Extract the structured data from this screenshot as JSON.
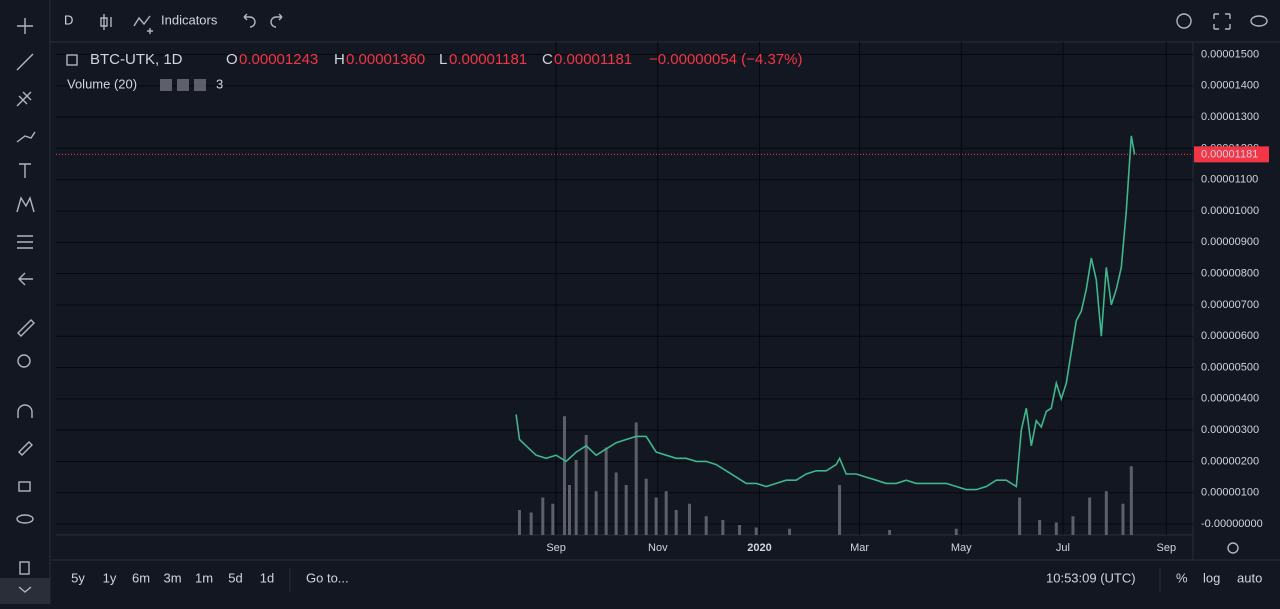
{
  "toolbar": {
    "interval": "D",
    "indicators": "Indicators"
  },
  "legend": {
    "symbol": "BTC-UTK, 1D",
    "o_label": "O",
    "o": "0.00001243",
    "h_label": "H",
    "h": "0.00001360",
    "l_label": "L",
    "l": "0.00001181",
    "c_label": "C",
    "c": "0.00001181",
    "change": "−0.00000054 (−4.37%)",
    "volume": "Volume (20)",
    "volume_count": "3"
  },
  "bottom": {
    "ranges": [
      "5y",
      "1y",
      "6m",
      "3m",
      "1m",
      "5d",
      "1d"
    ],
    "goto": "Go to...",
    "time": "10:53:09 (UTC)",
    "percent": "%",
    "log": "log",
    "auto": "auto"
  },
  "chart_data": {
    "type": "line",
    "color": "#3fb68b",
    "x": [
      -24,
      -22,
      -18,
      -12,
      -6,
      0,
      6,
      12,
      18,
      24,
      30,
      36,
      42,
      48,
      54,
      60,
      66,
      72,
      78,
      84,
      90,
      96,
      102,
      108,
      114,
      120,
      126,
      132,
      138,
      144,
      150,
      156,
      162,
      168,
      170,
      174,
      180,
      186,
      192,
      198,
      204,
      210,
      216,
      222,
      228,
      234,
      240,
      246,
      252,
      258,
      264,
      270,
      276,
      279,
      282,
      285,
      288,
      291,
      294,
      297,
      300,
      303,
      306,
      309,
      312,
      315,
      318,
      321,
      324,
      327,
      330,
      333,
      336,
      339,
      342,
      345,
      347
    ],
    "values": [
      3.5e-06,
      2.7e-06,
      2.5e-06,
      2.2e-06,
      2.1e-06,
      2.2e-06,
      2e-06,
      2.3e-06,
      2.5e-06,
      2.2e-06,
      2.4e-06,
      2.6e-06,
      2.7e-06,
      2.8e-06,
      2.8e-06,
      2.3e-06,
      2.2e-06,
      2.1e-06,
      2.1e-06,
      2e-06,
      2e-06,
      1.9e-06,
      1.7e-06,
      1.5e-06,
      1.3e-06,
      1.3e-06,
      1.2e-06,
      1.3e-06,
      1.4e-06,
      1.4e-06,
      1.6e-06,
      1.7e-06,
      1.7e-06,
      1.9e-06,
      2.1e-06,
      1.6e-06,
      1.6e-06,
      1.5e-06,
      1.4e-06,
      1.3e-06,
      1.3e-06,
      1.4e-06,
      1.3e-06,
      1.3e-06,
      1.3e-06,
      1.3e-06,
      1.2e-06,
      1.1e-06,
      1.1e-06,
      1.2e-06,
      1.4e-06,
      1.4e-06,
      1.2e-06,
      3e-06,
      3.7e-06,
      2.5e-06,
      3.3e-06,
      3.1e-06,
      3.6e-06,
      3.7e-06,
      4.5e-06,
      4e-06,
      4.5e-06,
      5.5e-06,
      6.5e-06,
      6.8e-06,
      7.5e-06,
      8.5e-06,
      7.8e-06,
      6e-06,
      8.2e-06,
      7e-06,
      7.5e-06,
      8.2e-06,
      1e-05,
      1.24e-05,
      1.181e-05
    ],
    "volume": {
      "color": "#5d606b",
      "x": [
        -22,
        -15,
        -8,
        -2,
        5,
        8,
        12,
        18,
        24,
        30,
        36,
        42,
        48,
        54,
        60,
        66,
        72,
        80,
        90,
        100,
        110,
        120,
        140,
        170,
        200,
        240,
        278,
        290,
        300,
        310,
        320,
        330,
        340,
        345
      ],
      "values": [
        20,
        18,
        30,
        25,
        95,
        40,
        60,
        80,
        35,
        70,
        50,
        40,
        90,
        45,
        30,
        35,
        20,
        25,
        15,
        12,
        8,
        6,
        5,
        40,
        4,
        5,
        30,
        12,
        10,
        15,
        30,
        35,
        25,
        55
      ]
    },
    "price_line": {
      "value": 1.181e-05,
      "label": "0.00001181",
      "color": "#f23645"
    },
    "xlim": [
      -300,
      382
    ],
    "xticks": [
      {
        "value": 0,
        "label": "Sep"
      },
      {
        "value": 61,
        "label": "Nov"
      },
      {
        "value": 122,
        "label": "2020"
      },
      {
        "value": 182,
        "label": "Mar"
      },
      {
        "value": 243,
        "label": "May"
      },
      {
        "value": 304,
        "label": "Jul"
      },
      {
        "value": 366,
        "label": "Sep"
      }
    ],
    "ylim": [
      -3.5e-07,
      1.54e-05
    ],
    "yticks": [
      {
        "value": 1.5e-05,
        "label": "0.00001500"
      },
      {
        "value": 1.4e-05,
        "label": "0.00001400"
      },
      {
        "value": 1.3e-05,
        "label": "0.00001300"
      },
      {
        "value": 1.2e-05,
        "label": "0.00001200"
      },
      {
        "value": 1.1e-05,
        "label": "0.00001100"
      },
      {
        "value": 1e-05,
        "label": "0.00001000"
      },
      {
        "value": 9e-06,
        "label": "0.00000900"
      },
      {
        "value": 8e-06,
        "label": "0.00000800"
      },
      {
        "value": 7e-06,
        "label": "0.00000700"
      },
      {
        "value": 6e-06,
        "label": "0.00000600"
      },
      {
        "value": 5e-06,
        "label": "0.00000500"
      },
      {
        "value": 4e-06,
        "label": "0.00000400"
      },
      {
        "value": 3e-06,
        "label": "0.00000300"
      },
      {
        "value": 2e-06,
        "label": "0.00000200"
      },
      {
        "value": 1e-06,
        "label": "0.00000100"
      },
      {
        "value": 0,
        "label": "-0.00000000"
      }
    ],
    "grid": true
  }
}
